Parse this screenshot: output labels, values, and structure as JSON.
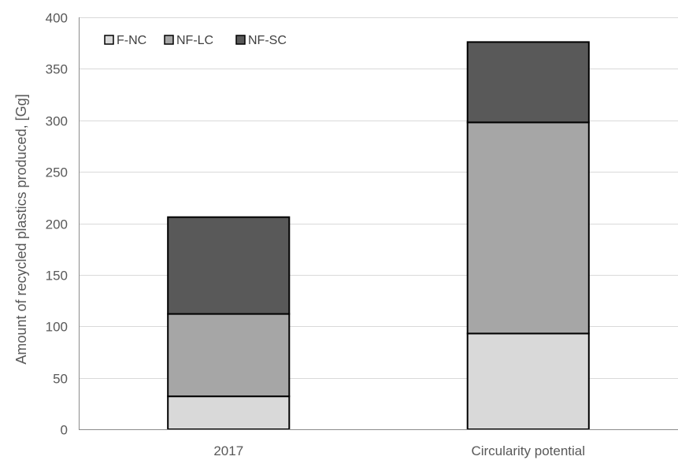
{
  "chart_data": {
    "type": "bar",
    "stacked": true,
    "title": "",
    "xlabel": "",
    "ylabel": "Amount of recycled plastics produced, [Gg]",
    "ylim": [
      0,
      400
    ],
    "yticks": [
      0,
      50,
      100,
      150,
      200,
      250,
      300,
      350,
      400
    ],
    "categories": [
      "2017",
      "Circularity potential"
    ],
    "series": [
      {
        "name": "F-NC",
        "values": [
          32,
          93
        ],
        "color": "#d9d9d9"
      },
      {
        "name": "NF-LC",
        "values": [
          80,
          205
        ],
        "color": "#a6a6a6"
      },
      {
        "name": "NF-SC",
        "values": [
          94,
          78
        ],
        "color": "#595959"
      }
    ],
    "grid": true,
    "legend_position": "top-left"
  }
}
